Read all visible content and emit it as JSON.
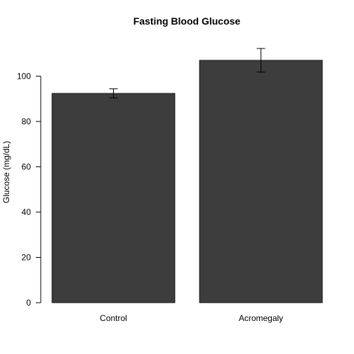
{
  "chart_data": {
    "type": "bar",
    "title": "Fasting Blood Glucose",
    "xlabel": "",
    "ylabel": "Glucose (mg/dL)",
    "categories": [
      "Control",
      "Acromegaly"
    ],
    "values": [
      92.4,
      107.0
    ],
    "error_low": [
      90.4,
      101.8
    ],
    "error_high": [
      94.4,
      112.2
    ],
    "ylim": [
      0,
      115
    ],
    "yticks": [
      0,
      20,
      40,
      60,
      80,
      100
    ],
    "bar_color": "#3d3d3d",
    "grid": false,
    "legend": "none"
  }
}
